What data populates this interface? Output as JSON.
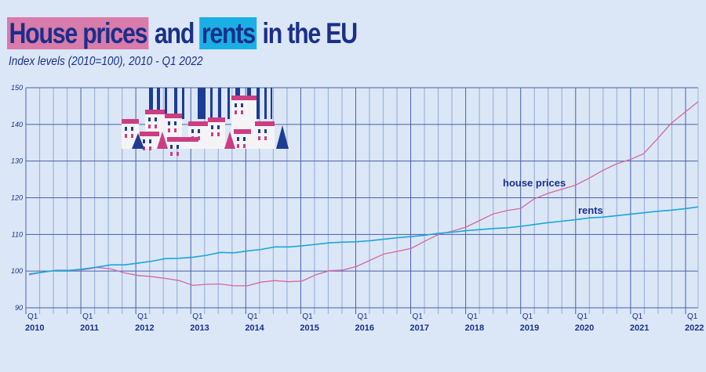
{
  "title": {
    "part1": "House prices",
    "part2": "and",
    "part3": "rents",
    "part4": "in the EU"
  },
  "subtitle": "Index levels (2010=100), 2010 - Q1 2022",
  "colors": {
    "background": "#dbe7f6",
    "house_prices": "#d5679f",
    "rents": "#1aa6dc",
    "grid": "#4a5fa8",
    "text": "#1b2f8a"
  },
  "illustration": "city-buildings-icon",
  "chart_data": {
    "type": "line",
    "title": "House prices and rents in the EU",
    "subtitle": "Index levels (2010=100), 2010 - Q1 2022",
    "frequency": "quarterly",
    "ylim": [
      90,
      150
    ],
    "yticks": [
      "90",
      "100",
      "110",
      "120",
      "130",
      "140",
      "150"
    ],
    "xticks_quarter": "Q1",
    "xticks_years": [
      "2010",
      "2011",
      "2012",
      "2013",
      "2014",
      "2015",
      "2016",
      "2017",
      "2018",
      "2019",
      "2020",
      "2021",
      "2022"
    ],
    "grid": true,
    "series": [
      {
        "name": "house prices",
        "values": [
          99.0,
          99.7,
          100.2,
          100.2,
          100.4,
          101.0,
          100.6,
          99.5,
          98.8,
          98.5,
          98.0,
          97.4,
          96.1,
          96.4,
          96.5,
          96.0,
          96.0,
          97.0,
          97.4,
          97.1,
          97.3,
          99.0,
          100.1,
          100.3,
          101.3,
          103.0,
          104.7,
          105.4,
          106.2,
          108.2,
          110.0,
          110.9,
          112.0,
          113.8,
          115.6,
          116.5,
          117.1,
          119.7,
          121.2,
          122.3,
          123.4,
          125.3,
          127.4,
          129.2,
          130.4,
          132.0,
          136.0,
          140.2,
          143.2,
          146.2
        ]
      },
      {
        "name": "rents",
        "values": [
          99.2,
          99.7,
          100.2,
          100.2,
          100.6,
          101.1,
          101.7,
          101.7,
          102.2,
          102.7,
          103.4,
          103.5,
          103.8,
          104.3,
          105.1,
          105.0,
          105.5,
          105.9,
          106.6,
          106.6,
          106.9,
          107.3,
          107.7,
          107.9,
          108.0,
          108.3,
          108.7,
          109.1,
          109.4,
          109.8,
          110.3,
          110.6,
          111.0,
          111.3,
          111.6,
          111.8,
          112.2,
          112.7,
          113.2,
          113.6,
          114.0,
          114.5,
          114.7,
          115.1,
          115.5,
          115.9,
          116.3,
          116.6,
          117.0,
          117.5
        ]
      }
    ]
  }
}
